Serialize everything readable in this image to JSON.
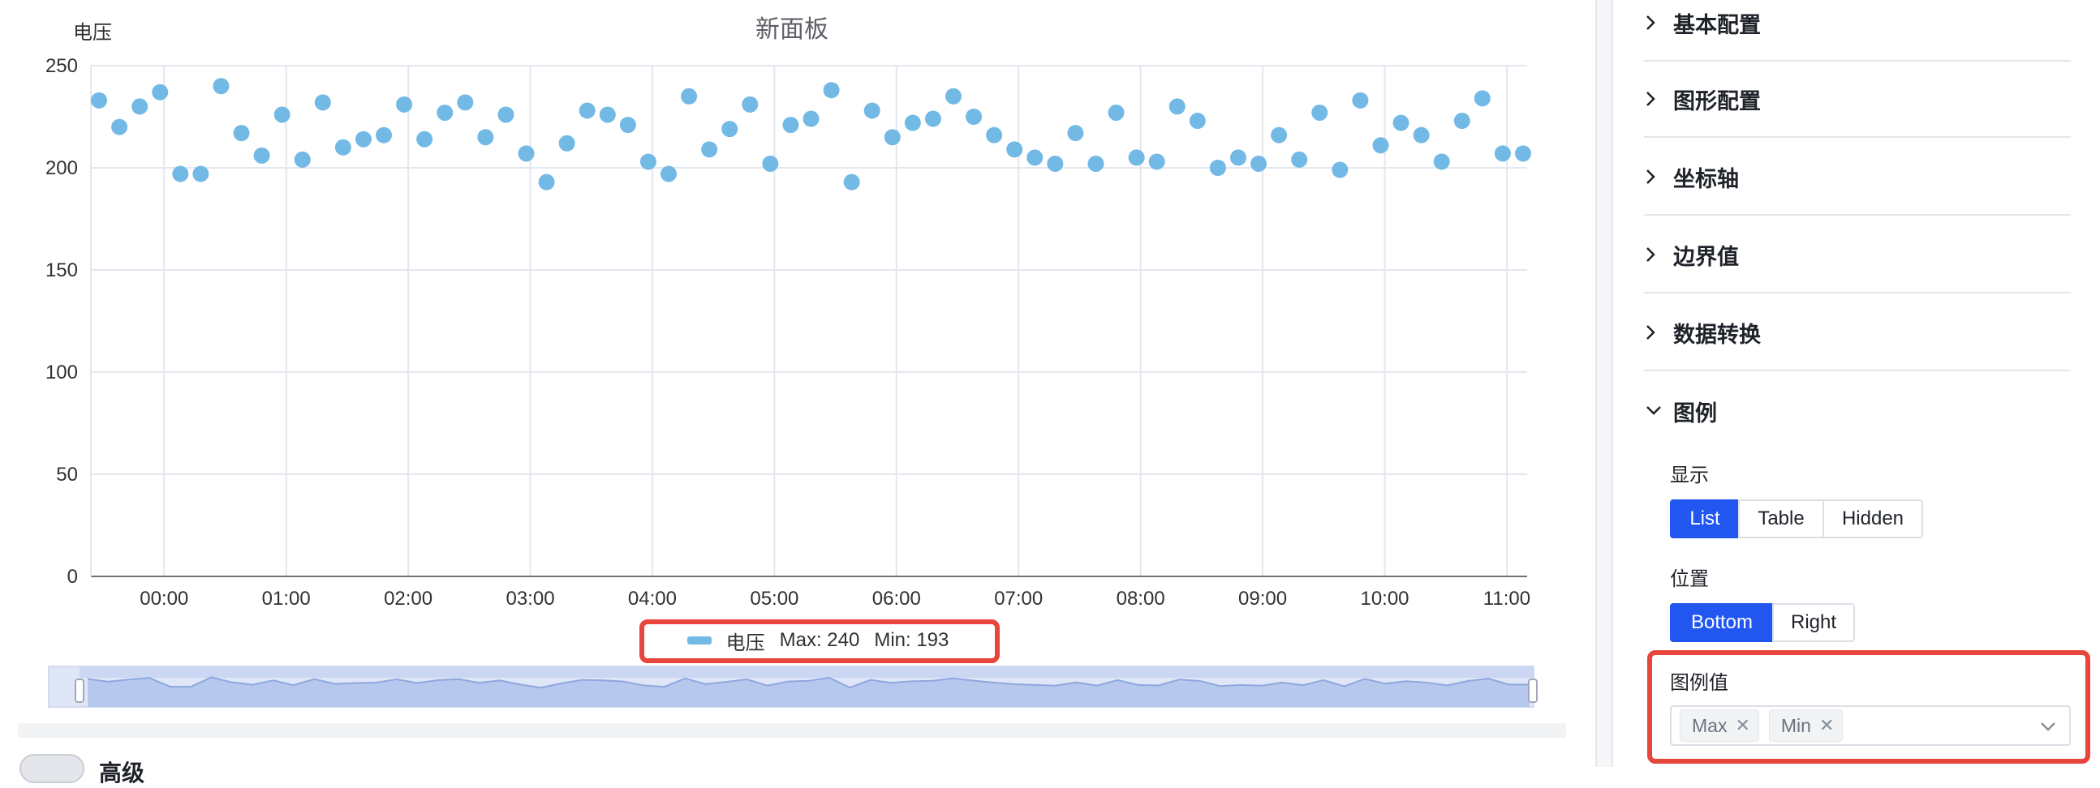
{
  "chart": {
    "title": "新面板",
    "y_axis_label": "电压",
    "legend": {
      "series_name": "电压",
      "max_text": "Max: 240",
      "min_text": "Min: 193"
    }
  },
  "chart_data": {
    "type": "scatter",
    "title": "新面板",
    "ylabel": "电压",
    "xlabel": "",
    "ylim": [
      0,
      250
    ],
    "y_ticks": [
      0,
      50,
      100,
      150,
      200,
      250
    ],
    "x_ticks": [
      "00:00",
      "01:00",
      "02:00",
      "03:00",
      "04:00",
      "05:00",
      "06:00",
      "07:00",
      "08:00",
      "09:00",
      "10:00",
      "11:00"
    ],
    "x_unit": "minutes after 00:00",
    "x_range": [
      -36,
      670
    ],
    "grid": true,
    "legend_position": "bottom",
    "series": [
      {
        "name": "电压",
        "color": "#73b9e6",
        "x": [
          -32,
          -22,
          -12,
          -2,
          8,
          18,
          28,
          38,
          48,
          58,
          68,
          78,
          88,
          98,
          108,
          118,
          128,
          138,
          148,
          158,
          168,
          178,
          188,
          198,
          208,
          218,
          228,
          238,
          248,
          258,
          268,
          278,
          288,
          298,
          308,
          318,
          328,
          338,
          348,
          358,
          368,
          378,
          388,
          398,
          408,
          418,
          428,
          438,
          448,
          458,
          468,
          478,
          488,
          498,
          508,
          518,
          528,
          538,
          548,
          558,
          568,
          578,
          588,
          598,
          608,
          618,
          628,
          638,
          648,
          658,
          668
        ],
        "y": [
          233,
          220,
          230,
          237,
          197,
          197,
          240,
          217,
          206,
          226,
          204,
          232,
          210,
          214,
          216,
          231,
          214,
          227,
          232,
          215,
          226,
          207,
          193,
          212,
          228,
          226,
          221,
          203,
          197,
          235,
          209,
          219,
          231,
          202,
          221,
          224,
          238,
          193,
          228,
          215,
          222,
          224,
          235,
          225,
          216,
          209,
          205,
          202,
          217,
          202,
          227,
          205,
          203,
          230,
          223,
          200,
          205,
          202,
          216,
          204,
          227,
          199,
          233,
          211,
          222,
          216,
          203,
          223,
          234,
          207,
          207
        ]
      }
    ]
  },
  "sidebar": {
    "sections": [
      {
        "label": "基本配置",
        "expanded": false
      },
      {
        "label": "图形配置",
        "expanded": false
      },
      {
        "label": "坐标轴",
        "expanded": false
      },
      {
        "label": "边界值",
        "expanded": false
      },
      {
        "label": "数据转换",
        "expanded": false
      },
      {
        "label": "图例",
        "expanded": true
      }
    ],
    "legend_config": {
      "display_label": "显示",
      "display_options": [
        "List",
        "Table",
        "Hidden"
      ],
      "display_selected": "List",
      "position_label": "位置",
      "position_options": [
        "Bottom",
        "Right"
      ],
      "position_selected": "Bottom",
      "values_label": "图例值",
      "values_selected": [
        "Max",
        "Min"
      ]
    }
  },
  "footer": {
    "advanced_label": "高级"
  },
  "colors": {
    "series": "#73b9e6",
    "accent": "#2156f0",
    "highlight": "#e8453c"
  }
}
